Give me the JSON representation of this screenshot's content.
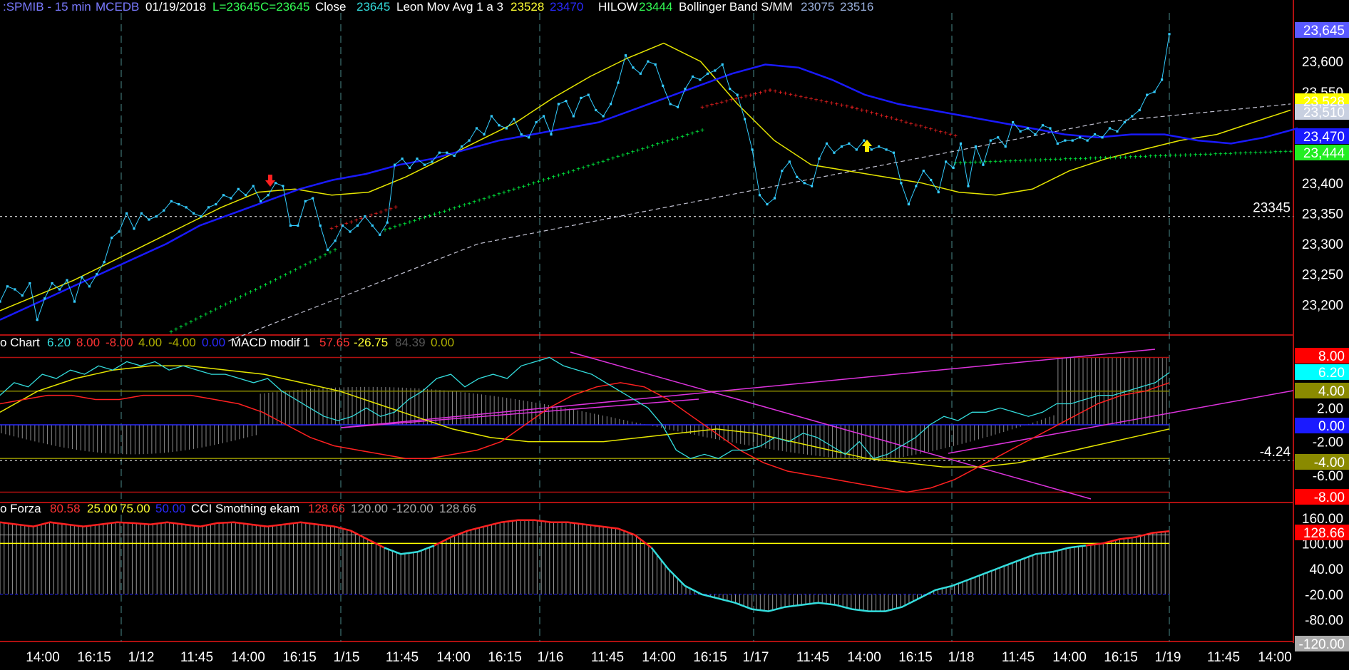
{
  "header": {
    "symbol": ":SPMIB - 15 min",
    "exchange": "MCEDB",
    "date": "01/19/2018",
    "low": "L=23645",
    "close_eq": "C=23645",
    "close_label": "Close",
    "close_value": "23645",
    "leon_label": "Leon Mov Avg 1 a 3",
    "leon_v1": "23528",
    "leon_v2": "23470",
    "hilow_label": "HILOW",
    "hilow_value": "23444",
    "boll_label": "Bollinger Band S/MM",
    "boll_v1": "23075",
    "boll_v2": "23516"
  },
  "panel2_header": {
    "label": "o Chart",
    "v1": "6.20",
    "v2": "8.00",
    "v3": "-8.00",
    "v4": "4.00",
    "v5": "-4.00",
    "v6": "0.00",
    "macd_label": "MACD modif 1",
    "m1": "57.65",
    "m2": "-26.75",
    "m3": "84.39",
    "m4": "0.00"
  },
  "panel3_header": {
    "label": "o Forza",
    "v1": "80.58",
    "v2": "25.00",
    "v3": "75.00",
    "v4": "50.00",
    "cci_label": "CCI Smothing ekam",
    "c1": "128.66",
    "c2": "120.00",
    "c3": "-120.00",
    "c4": "128.66"
  },
  "colors": {
    "price": "#33ccff",
    "fast_ma": "#1a1aff",
    "slow_ma": "#e6e600",
    "trend_green": "#00ff44",
    "trend_red": "#ff2222",
    "bollinger": "#c0c0d0",
    "macd_cyan": "#33dddd",
    "macd_red": "#ff2020",
    "macd_yellow": "#e6e600",
    "trendline": "#dd33dd",
    "grid": "#4a8a8a"
  },
  "chart_data": [
    {
      "type": "line",
      "title": "",
      "ylim": [
        23150,
        23680
      ],
      "y_ticks": [
        "23,600",
        "23,550",
        "23,400",
        "23,350",
        "23,300",
        "23,250",
        "23,200"
      ],
      "badges": [
        "23,645",
        "23,528",
        "23,470",
        "23,444",
        "23,510"
      ],
      "hline_label": "23345",
      "hline_value": 23345,
      "series": [
        {
          "name": "Close",
          "values": [
            23205,
            23230,
            23225,
            23215,
            23235,
            23175,
            23210,
            23235,
            23225,
            23240,
            23205,
            23245,
            23230,
            23250,
            23270,
            23310,
            23320,
            23350,
            23325,
            23350,
            23340,
            23345,
            23355,
            23370,
            23365,
            23360,
            23350,
            23345,
            23360,
            23365,
            23380,
            23375,
            23390,
            23380,
            23395,
            23370,
            23380,
            23400,
            23395,
            23330,
            23330,
            23370,
            23375,
            23330,
            23290,
            23305,
            23330,
            23320,
            23330,
            23345,
            23330,
            23315,
            23335,
            23430,
            23440,
            23425,
            23440,
            23430,
            23435,
            23450,
            23450,
            23445,
            23460,
            23470,
            23490,
            23480,
            23510,
            23495,
            23490,
            23505,
            23480,
            23475,
            23500,
            23510,
            23480,
            23530,
            23535,
            23510,
            23540,
            23545,
            23520,
            23510,
            23530,
            23565,
            23610,
            23590,
            23580,
            23600,
            23595,
            23560,
            23530,
            23525,
            23555,
            23575,
            23570,
            23580,
            23585,
            23595,
            23555,
            23545,
            23505,
            23455,
            23380,
            23365,
            23375,
            23420,
            23435,
            23410,
            23400,
            23395,
            23440,
            23465,
            23450,
            23460,
            23465,
            23455,
            23470,
            23455,
            23460,
            23455,
            23450,
            23400,
            23365,
            23395,
            23420,
            23405,
            23385,
            23435,
            23425,
            23465,
            23395,
            23460,
            23430,
            23470,
            23475,
            23460,
            23500,
            23485,
            23490,
            23480,
            23495,
            23490,
            23465,
            23470,
            23470,
            23475,
            23470,
            23480,
            23475,
            23490,
            23485,
            23500,
            23510,
            23520,
            23545,
            23550,
            23570,
            23645
          ]
        },
        {
          "name": "",
          "values": [
            23175,
            23200,
            23225,
            23250,
            23275,
            23300,
            23330,
            23350,
            23370,
            23390,
            23405,
            23415,
            23430,
            23440,
            23455,
            23470,
            23480,
            23490,
            23500,
            23520,
            23540,
            23560,
            23580,
            23595,
            23590,
            23570,
            23545,
            23530,
            23520,
            23510,
            23500,
            23490,
            23480,
            23475,
            23480,
            23480,
            23470,
            23465,
            23475,
            23490
          ]
        },
        {
          "name": "",
          "values": [
            23190,
            23215,
            23240,
            23270,
            23300,
            23330,
            23360,
            23385,
            23390,
            23380,
            23385,
            23410,
            23440,
            23470,
            23500,
            23540,
            23575,
            23605,
            23630,
            23600,
            23530,
            23470,
            23430,
            23420,
            23410,
            23400,
            23385,
            23380,
            23390,
            23420,
            23440,
            23455,
            23470,
            23480,
            23500,
            23520
          ]
        },
        {
          "name": "",
          "values": [
            23140,
            23160,
            23180,
            23200,
            23220,
            23240,
            23260,
            23280,
            23300,
            23310,
            23320,
            23330,
            23340,
            23350,
            23360,
            23370,
            23380,
            23390,
            23400,
            23410,
            23420,
            23430,
            23440,
            23450,
            23460,
            23470,
            23480,
            23490,
            23500,
            23505,
            23510,
            23515,
            23520,
            23525,
            23530
          ]
        }
      ],
      "x_tick_labels": [
        "14:00",
        "16:15",
        "1/12",
        "11:45",
        "14:00",
        "16:15",
        "1/15",
        "11:45",
        "14:00",
        "16:15",
        "1/16",
        "11:45",
        "14:00",
        "16:15",
        "1/17",
        "11:45",
        "14:00",
        "16:15",
        "1/18",
        "11:45",
        "14:00",
        "16:15",
        "1/19",
        "11:45",
        "14:00"
      ]
    },
    {
      "type": "line",
      "title": "",
      "ylim": [
        -8.8,
        8.8
      ],
      "y_ticks": [
        "2.00",
        "-2.00",
        "-6.00"
      ],
      "badges": [
        "8.00",
        "6.20",
        "4.00",
        "0.00",
        "-4.00",
        "-8.00"
      ],
      "hline_label": "-4.24",
      "hline_value": -4.24,
      "series": [
        {
          "name": "",
          "values": [
            3.5,
            5.0,
            4.5,
            6.0,
            5.5,
            6.5,
            6.0,
            7.0,
            6.5,
            7.5,
            7.0,
            7.5,
            6.5,
            7.0,
            6.5,
            6.0,
            6.0,
            5.5,
            5.0,
            5.5,
            4.0,
            3.0,
            2.0,
            1.0,
            0.5,
            1.0,
            2.0,
            1.0,
            1.5,
            3.0,
            4.0,
            5.5,
            6.0,
            4.5,
            5.5,
            6.0,
            5.5,
            7.0,
            7.5,
            8.0,
            7.0,
            6.5,
            6.0,
            5.0,
            4.0,
            3.0,
            2.0,
            0.0,
            -3.0,
            -4.0,
            -3.5,
            -4.0,
            -3.0,
            -3.0,
            -2.5,
            -1.5,
            -2.0,
            -1.0,
            -1.5,
            -2.5,
            -3.5,
            -2.0,
            -4.0,
            -3.5,
            -2.5,
            -1.5,
            0.0,
            1.0,
            0.5,
            1.5,
            1.5,
            2.0,
            1.5,
            1.0,
            1.5,
            2.5,
            2.5,
            3.0,
            3.5,
            3.5,
            4.0,
            4.5,
            5.0,
            6.2
          ]
        },
        {
          "name": "",
          "values": [
            2.5,
            3.0,
            3.5,
            3.5,
            3.0,
            3.0,
            3.5,
            3.5,
            3.5,
            3.0,
            2.5,
            1.5,
            0.0,
            -1.5,
            -2.5,
            -3.0,
            -3.5,
            -4.0,
            -4.0,
            -3.5,
            -3.0,
            -2.0,
            0.0,
            2.0,
            3.5,
            4.5,
            5.0,
            4.5,
            3.0,
            1.0,
            -1.0,
            -3.0,
            -4.5,
            -5.5,
            -6.0,
            -6.5,
            -7.0,
            -7.5,
            -8.0,
            -7.5,
            -6.5,
            -5.0,
            -3.5,
            -2.0,
            -0.5,
            1.0,
            2.5,
            3.5,
            4.0,
            5.0
          ]
        },
        {
          "name": "",
          "values": [
            1.5,
            4.0,
            5.5,
            6.5,
            7.0,
            7.0,
            6.5,
            6.0,
            5.0,
            4.0,
            2.5,
            1.0,
            -0.5,
            -1.5,
            -2.0,
            -2.0,
            -2.0,
            -1.5,
            -1.0,
            -0.5,
            -1.0,
            -2.0,
            -3.0,
            -4.0,
            -4.5,
            -5.0,
            -5.0,
            -4.5,
            -3.5,
            -2.5,
            -1.5,
            -0.5
          ]
        }
      ]
    },
    {
      "type": "line",
      "title": "",
      "ylim": [
        -128,
        168
      ],
      "y_ticks": [
        "160.00",
        "100.00",
        "40.00",
        "-20.00",
        "-80.00"
      ],
      "badges": [
        "128.66",
        "-120.00"
      ],
      "series": [
        {
          "name": "",
          "values": [
            150,
            145,
            140,
            150,
            145,
            140,
            145,
            150,
            148,
            145,
            150,
            145,
            140,
            148,
            150,
            145,
            140,
            145,
            150,
            145,
            140,
            130,
            110,
            90,
            75,
            80,
            95,
            115,
            130,
            140,
            150,
            155,
            155,
            150,
            150,
            145,
            140,
            135,
            120,
            90,
            40,
            0,
            -20,
            -30,
            -40,
            -55,
            -60,
            -50,
            -45,
            -40,
            -45,
            -55,
            -60,
            -60,
            -50,
            -30,
            -10,
            0,
            15,
            30,
            45,
            60,
            75,
            80,
            90,
            95,
            100,
            110,
            115,
            125,
            129
          ]
        }
      ]
    }
  ]
}
